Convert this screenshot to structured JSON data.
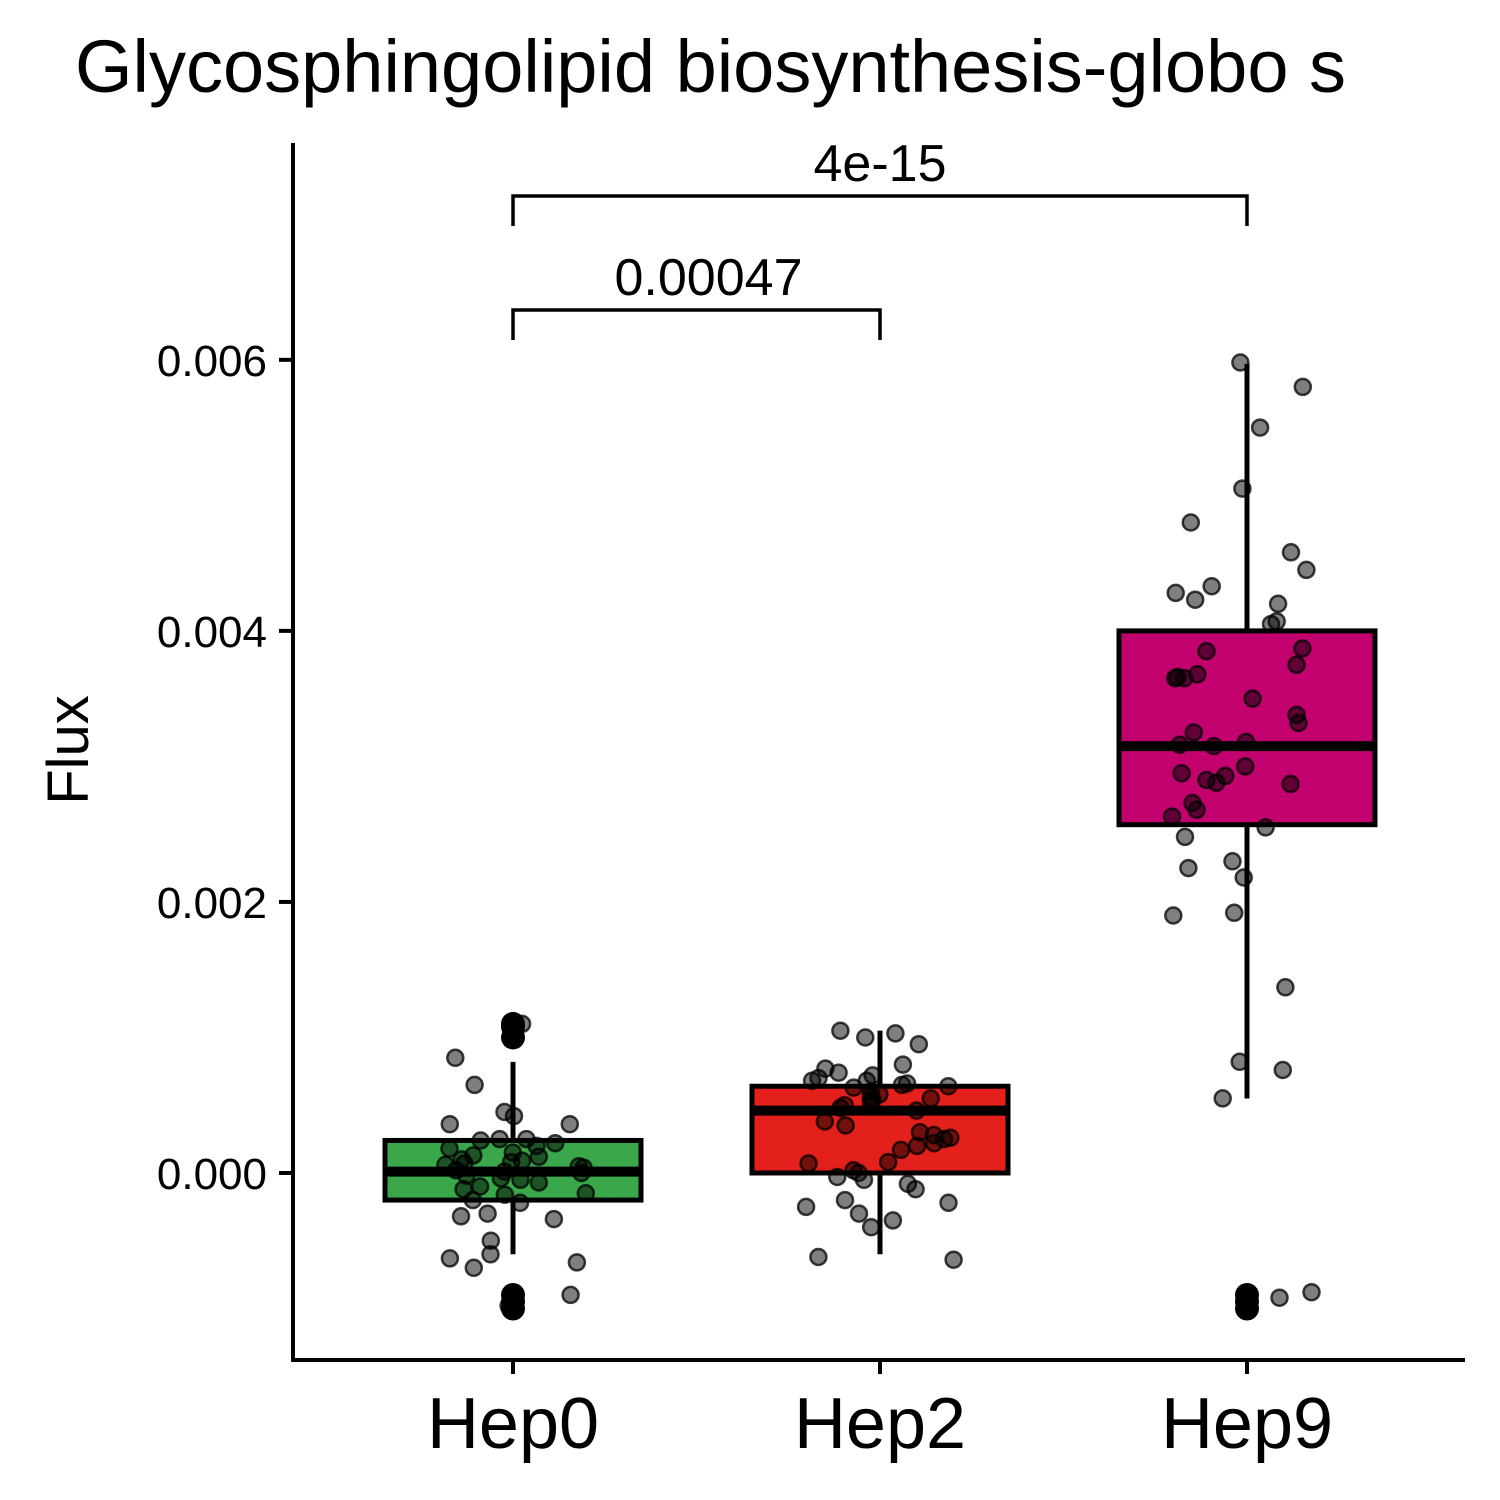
{
  "chart_data": {
    "type": "box",
    "title": "Glycosphingolipid biosynthesis-globo s",
    "xlabel": "",
    "ylabel": "Flux",
    "ylim": [
      -0.00138,
      0.0076
    ],
    "yticks": [
      0.0,
      0.002,
      0.004,
      0.006
    ],
    "ytick_labels": [
      "0.000",
      "0.002",
      "0.004",
      "0.006"
    ],
    "categories": [
      "Hep0",
      "Hep2",
      "Hep9"
    ],
    "legend": "none",
    "grid": false,
    "series": [
      {
        "category": "Hep0",
        "color": "#3aa84a",
        "min": -0.0006,
        "q1": -0.0002,
        "median": 1e-05,
        "q3": 0.00024,
        "max": 0.00082,
        "outliers": [
          0.0011,
          0.00108,
          0.001,
          -0.0009,
          -0.00095,
          -0.001
        ],
        "points": [
          0.001,
          0.0011,
          0.00085,
          0.00065,
          0.00045,
          0.00042,
          0.00036,
          0.00036,
          0.00025,
          0.00025,
          0.00024,
          0.00022,
          0.0002,
          0.00018,
          0.00015,
          0.00013,
          0.00012,
          0.0001,
          9e-05,
          8e-05,
          7e-05,
          6e-05,
          5e-05,
          4e-05,
          2e-05,
          1e-05,
          0.0,
          -2e-05,
          -4e-05,
          -5e-05,
          -7e-05,
          -0.0001,
          -0.00012,
          -0.00015,
          -0.00016,
          -0.0002,
          -0.00022,
          -0.0003,
          -0.00032,
          -0.00034,
          -0.0005,
          -0.0006,
          -0.00063,
          -0.00066,
          -0.0007,
          -0.0009,
          -0.00098
        ]
      },
      {
        "category": "Hep2",
        "color": "#e3201b",
        "min": -0.0006,
        "q1": 0.0,
        "median": 0.00046,
        "q3": 0.00064,
        "max": 0.00105,
        "outliers": [],
        "points": [
          0.00105,
          0.00103,
          0.001,
          0.00095,
          0.0008,
          0.00077,
          0.00074,
          0.00072,
          0.0007,
          0.00068,
          0.00068,
          0.00066,
          0.00065,
          0.00064,
          0.00063,
          0.0006,
          0.00058,
          0.00056,
          0.00055,
          0.00054,
          0.00052,
          0.0005,
          0.00048,
          0.00046,
          0.00038,
          0.00035,
          0.0003,
          0.00028,
          0.00026,
          0.00025,
          0.00022,
          0.0002,
          0.00017,
          8e-05,
          7e-05,
          2e-05,
          0.0,
          -3e-05,
          -5e-05,
          -8e-05,
          -0.00012,
          -0.0002,
          -0.00022,
          -0.00025,
          -0.0003,
          -0.00035,
          -0.0004,
          -0.00062,
          -0.00064
        ]
      },
      {
        "category": "Hep9",
        "color": "#c2006e",
        "min": 0.00055,
        "q1": 0.00257,
        "median": 0.00315,
        "q3": 0.004,
        "max": 0.00597,
        "outliers": [
          -0.0009,
          -0.00095,
          -0.001
        ],
        "points": [
          0.00598,
          0.0058,
          0.0055,
          0.00505,
          0.0048,
          0.00458,
          0.00445,
          0.00433,
          0.00428,
          0.00423,
          0.0042,
          0.00407,
          0.00405,
          0.00387,
          0.00385,
          0.00375,
          0.00368,
          0.00366,
          0.00365,
          0.00365,
          0.0035,
          0.00338,
          0.00332,
          0.00325,
          0.00318,
          0.00316,
          0.00315,
          0.003,
          0.00295,
          0.00293,
          0.0029,
          0.00288,
          0.00287,
          0.00273,
          0.00268,
          0.00263,
          0.00255,
          0.00248,
          0.0023,
          0.00225,
          0.00218,
          0.00192,
          0.0019,
          0.00137,
          0.00082,
          0.00076,
          0.00055,
          -0.00088,
          -0.00092
        ]
      }
    ],
    "comparisons": [
      {
        "from": "Hep0",
        "to": "Hep2",
        "label": "0.00047"
      },
      {
        "from": "Hep0",
        "to": "Hep9",
        "label": "4e-15"
      }
    ]
  }
}
